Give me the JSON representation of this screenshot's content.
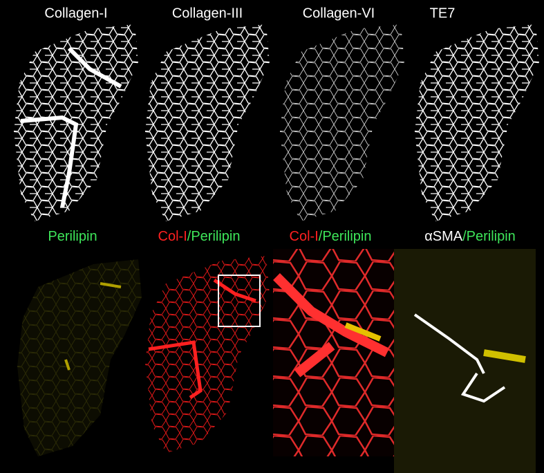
{
  "top_panels": [
    {
      "label": "Collagen-I"
    },
    {
      "label": "Collagen-III"
    },
    {
      "label": "Collagen-VI"
    },
    {
      "label": "TE7"
    }
  ],
  "bottom_panels": [
    {
      "label_parts": [
        "Perilipin"
      ]
    },
    {
      "label_parts": [
        "Col-I",
        "/Perilipin"
      ]
    },
    {
      "label_parts": [
        "Col-I",
        "/Perilipin"
      ]
    },
    {
      "label_parts": [
        "αSMA",
        "/Perilipin"
      ]
    }
  ]
}
